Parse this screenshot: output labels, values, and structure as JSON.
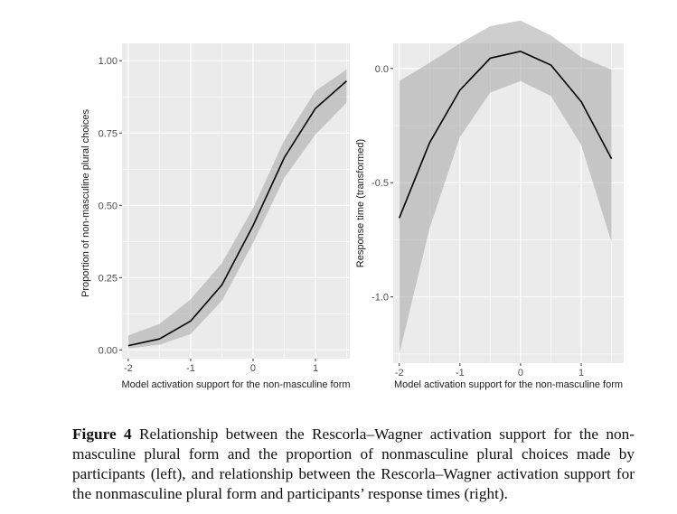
{
  "caption": {
    "label": "Figure 4",
    "text": "Relationship between the Rescorla–Wagner activation support for the non-masculine plural form and the proportion of nonmasculine plural choices made by participants (left), and relationship between the Rescorla–Wagner activation support for the nonmasculine plural form and participants’ response times (right)."
  },
  "chart_data": [
    {
      "type": "line",
      "panel": "left",
      "xlabel": "Model activation support for the non-masculine form",
      "ylabel": "Proportion of non-masculine plural choices",
      "xlim": [
        -2.1,
        1.55
      ],
      "ylim": [
        -0.03,
        1.06
      ],
      "x_ticks": [
        -2,
        -1,
        0,
        1
      ],
      "x_tick_labels": [
        "-2",
        "-1",
        "0",
        "1"
      ],
      "y_ticks": [
        0.0,
        0.25,
        0.5,
        0.75,
        1.0
      ],
      "y_tick_labels": [
        "0.00",
        "0.25",
        "0.50",
        "0.75",
        "1.00"
      ],
      "grid": true,
      "x": [
        -2.0,
        -1.5,
        -1.0,
        -0.5,
        0.0,
        0.5,
        1.0,
        1.5
      ],
      "y": [
        0.015,
        0.038,
        0.1,
        0.225,
        0.43,
        0.665,
        0.835,
        0.93
      ],
      "ci_lower": [
        0.005,
        0.018,
        0.055,
        0.17,
        0.37,
        0.595,
        0.745,
        0.855
      ],
      "ci_upper": [
        0.05,
        0.09,
        0.175,
        0.3,
        0.49,
        0.725,
        0.895,
        0.97
      ]
    },
    {
      "type": "line",
      "panel": "right",
      "xlabel": "Model activation support for the non-masculine form",
      "ylabel": "Response time (transformed)",
      "xlim": [
        -2.1,
        1.7
      ],
      "ylim": [
        -1.29,
        0.11
      ],
      "x_ticks": [
        -2,
        -1,
        0,
        1
      ],
      "x_tick_labels": [
        "-2",
        "-1",
        "0",
        "1"
      ],
      "y_ticks": [
        -1.0,
        -0.5,
        0.0
      ],
      "y_tick_labels": [
        "-1.0",
        "-0.5",
        "0.0"
      ],
      "grid": true,
      "x": [
        -2.0,
        -1.5,
        -1.0,
        -0.5,
        0.0,
        0.5,
        1.0,
        1.5
      ],
      "y": [
        -0.655,
        -0.325,
        -0.095,
        0.045,
        0.075,
        0.015,
        -0.145,
        -0.395
      ],
      "ci_lower": [
        -1.25,
        -0.7,
        -0.3,
        -0.105,
        -0.055,
        -0.12,
        -0.335,
        -0.76
      ],
      "ci_upper": [
        -0.055,
        0.025,
        0.11,
        0.185,
        0.21,
        0.145,
        0.05,
        -0.005
      ]
    }
  ]
}
